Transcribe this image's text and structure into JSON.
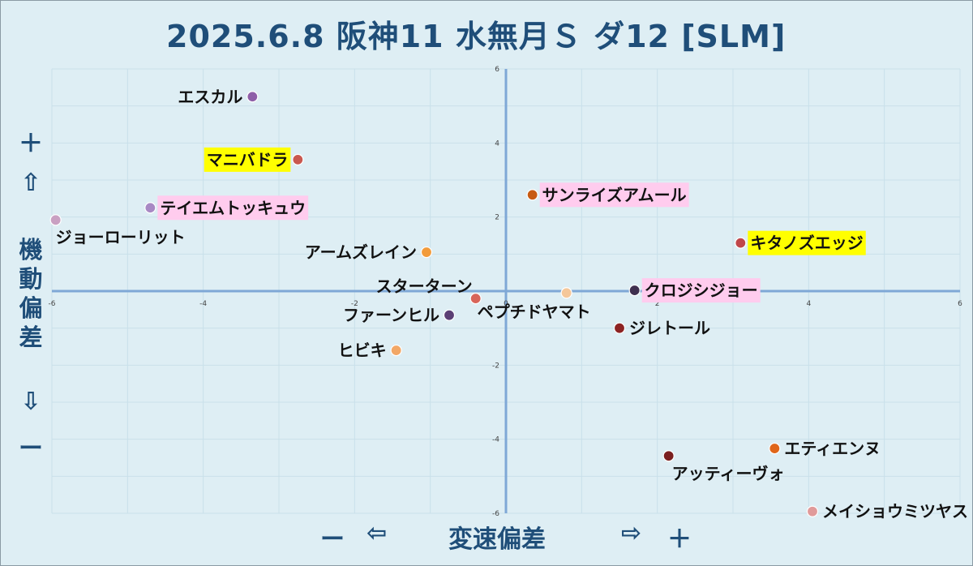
{
  "title": "2025.6.8 阪神11 水無月Ｓ ダ12 [SLM]",
  "y_axis": {
    "plus": "＋",
    "up_arrow": "⇧",
    "label_chars": [
      "機",
      "動",
      "偏",
      "差"
    ],
    "down_arrow": "⇩",
    "minus": "ー"
  },
  "x_axis": {
    "minus": "ー",
    "left_arrow": "⇦",
    "label": "変速偏差",
    "right_arrow": "⇨",
    "plus": "＋"
  },
  "chart_data": {
    "type": "scatter",
    "title": "2025.6.8 阪神11 水無月Ｓ ダ12 [SLM]",
    "xlabel": "変速偏差",
    "ylabel": "機動偏差",
    "xlim": [
      -6,
      6
    ],
    "ylim": [
      -6,
      6
    ],
    "x_ticks": [
      -6,
      -4,
      -2,
      0,
      2,
      4,
      6
    ],
    "y_ticks": [
      -6,
      -4,
      -2,
      0,
      2,
      4,
      6
    ],
    "grid": true,
    "points": [
      {
        "label": "エスカル",
        "x": -3.35,
        "y": 5.25,
        "color": "#8e5fa8",
        "label_pos": "left",
        "highlight": ""
      },
      {
        "label": "マニバドラ",
        "x": -2.75,
        "y": 3.55,
        "color": "#c9584f",
        "label_pos": "left",
        "highlight": "#ffff00"
      },
      {
        "label": "テイエムトッキュウ",
        "x": -4.7,
        "y": 2.25,
        "color": "#a889c4",
        "label_pos": "right",
        "highlight": "#ffccee"
      },
      {
        "label": "ジョーローリット",
        "x": -5.95,
        "y": 1.92,
        "color": "#c9a0c2",
        "label_pos": "below-right",
        "highlight": ""
      },
      {
        "label": "アームズレイン",
        "x": -1.05,
        "y": 1.05,
        "color": "#f29b3b",
        "label_pos": "left",
        "highlight": ""
      },
      {
        "label": "スターターン",
        "x": -0.4,
        "y": -0.2,
        "color": "#d8655a",
        "label_pos": "above-left",
        "highlight": ""
      },
      {
        "label": "ファーンヒル",
        "x": -0.75,
        "y": -0.65,
        "color": "#5b3f74",
        "label_pos": "left",
        "highlight": ""
      },
      {
        "label": "ヒビキ",
        "x": -1.45,
        "y": -1.6,
        "color": "#f2a766",
        "label_pos": "left",
        "highlight": ""
      },
      {
        "label": "サンライズアムール",
        "x": 0.35,
        "y": 2.6,
        "color": "#c75b12",
        "label_pos": "right",
        "highlight": "#ffccee"
      },
      {
        "label": "キタノズエッジ",
        "x": 3.1,
        "y": 1.3,
        "color": "#c0474a",
        "label_pos": "right",
        "highlight": "#ffff00"
      },
      {
        "label": "クロジシジョー",
        "x": 1.7,
        "y": 0.02,
        "color": "#3e2f4f",
        "label_pos": "right",
        "highlight": "#ffccee"
      },
      {
        "label": "ペプチドヤマト",
        "x": 0.8,
        "y": -0.05,
        "color": "#f5c79a",
        "label_pos": "below-left",
        "highlight": ""
      },
      {
        "label": "ジレトール",
        "x": 1.5,
        "y": -1.0,
        "color": "#8c2323",
        "label_pos": "right",
        "highlight": ""
      },
      {
        "label": "エティエンヌ",
        "x": 3.55,
        "y": -4.25,
        "color": "#e0661a",
        "label_pos": "right",
        "highlight": ""
      },
      {
        "label": "アッティーヴォ",
        "x": 2.15,
        "y": -4.45,
        "color": "#7a1f1f",
        "label_pos": "below",
        "highlight": ""
      },
      {
        "label": "メイショウミツヤス",
        "x": 4.05,
        "y": -5.95,
        "color": "#e09a9a",
        "label_pos": "right",
        "highlight": ""
      }
    ]
  }
}
